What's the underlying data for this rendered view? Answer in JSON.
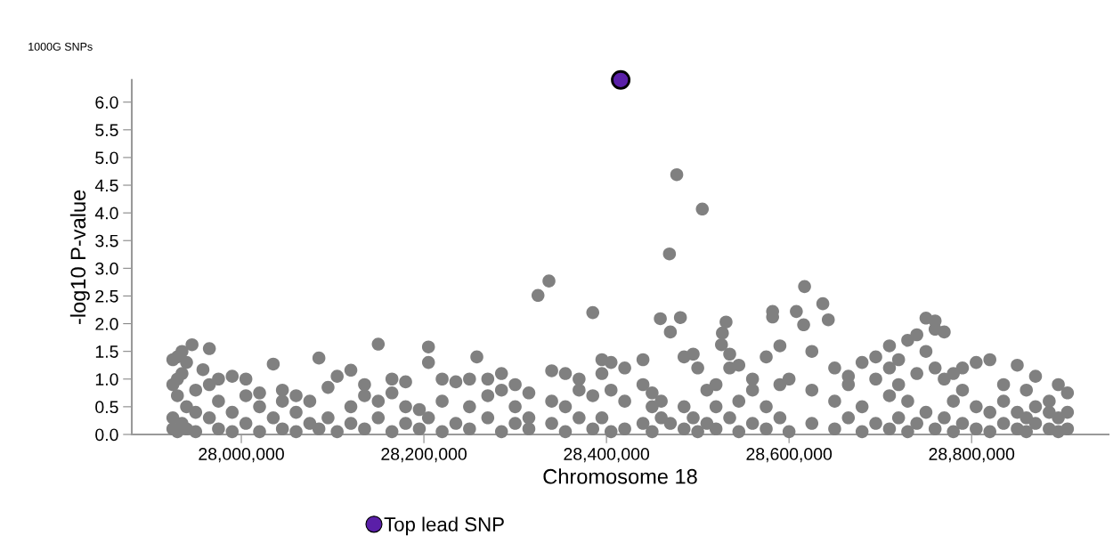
{
  "chart_data": {
    "type": "scatter",
    "title": "1000G SNPs",
    "xlabel": "Chromosome 18",
    "ylabel": "-log10 P-value",
    "xlim": [
      27880000,
      28950000
    ],
    "ylim": [
      0,
      6.4
    ],
    "xticks": [
      {
        "value": 28000000,
        "label": "28,000,000"
      },
      {
        "value": 28200000,
        "label": "28,200,000"
      },
      {
        "value": 28400000,
        "label": "28,400,000"
      },
      {
        "value": 28600000,
        "label": "28,600,000"
      },
      {
        "value": 28800000,
        "label": "28,800,000"
      }
    ],
    "yticks": [
      {
        "value": 0,
        "label": "0.0"
      },
      0.5,
      {
        "value": 1,
        "label": "1.0"
      },
      1.5,
      {
        "value": 2,
        "label": "2.0"
      },
      2.5,
      {
        "value": 3,
        "label": "3.0"
      },
      3.5,
      {
        "value": 4,
        "label": "4.0"
      },
      4.5,
      {
        "value": 5,
        "label": "5.0"
      },
      5.5,
      {
        "value": 6,
        "label": "6.0"
      }
    ],
    "grid": false,
    "legend": "bottom",
    "marker": "circle",
    "series": [
      {
        "color": "#808080",
        "x": [
          27925000,
          27925000,
          27925000,
          27925000,
          27930000,
          27930000,
          27930000,
          27930000,
          27935000,
          27935000,
          27935000,
          27940000,
          27940000,
          27940000,
          27946000,
          27950000,
          27950000,
          27950000,
          27958000,
          27965000,
          27965000,
          27965000,
          27975000,
          27975000,
          27975000,
          27990000,
          27990000,
          27990000,
          28005000,
          28005000,
          28005000,
          28020000,
          28020000,
          28020000,
          28035000,
          28035000,
          28045000,
          28045000,
          28045000,
          28060000,
          28060000,
          28060000,
          28075000,
          28075000,
          28085000,
          28085000,
          28095000,
          28095000,
          28105000,
          28105000,
          28120000,
          28120000,
          28120000,
          28135000,
          28135000,
          28135000,
          28150000,
          28150000,
          28150000,
          28165000,
          28165000,
          28165000,
          28180000,
          28180000,
          28180000,
          28195000,
          28195000,
          28205000,
          28205000,
          28205000,
          28220000,
          28220000,
          28220000,
          28235000,
          28235000,
          28250000,
          28250000,
          28250000,
          28258000,
          28270000,
          28270000,
          28270000,
          28285000,
          28285000,
          28285000,
          28300000,
          28300000,
          28300000,
          28315000,
          28315000,
          28315000,
          28325000,
          28337000,
          28340000,
          28340000,
          28340000,
          28355000,
          28355000,
          28355000,
          28370000,
          28370000,
          28370000,
          28385000,
          28385000,
          28385000,
          28395000,
          28395000,
          28395000,
          28405000,
          28405000,
          28405000,
          28420000,
          28420000,
          28420000,
          28440000,
          28440000,
          28440000,
          28450000,
          28450000,
          28450000,
          28459000,
          28460000,
          28460000,
          28469000,
          28470000,
          28470000,
          28477000,
          28481000,
          28485000,
          28485000,
          28485000,
          28495000,
          28495000,
          28500000,
          28500000,
          28505000,
          28510000,
          28510000,
          28520000,
          28520000,
          28520000,
          28526000,
          28527000,
          28531000,
          28535000,
          28535000,
          28535000,
          28545000,
          28545000,
          28545000,
          28560000,
          28560000,
          28560000,
          28575000,
          28575000,
          28575000,
          28582000,
          28582000,
          28590000,
          28590000,
          28590000,
          28600000,
          28600000,
          28608000,
          28616000,
          28617000,
          28625000,
          28625000,
          28625000,
          28637000,
          28643000,
          28650000,
          28650000,
          28650000,
          28665000,
          28665000,
          28665000,
          28680000,
          28680000,
          28680000,
          28695000,
          28695000,
          28695000,
          28710000,
          28710000,
          28710000,
          28710000,
          28720000,
          28720000,
          28720000,
          28730000,
          28730000,
          28730000,
          28740000,
          28740000,
          28740000,
          28750000,
          28750000,
          28750000,
          28760000,
          28760000,
          28760000,
          28760000,
          28770000,
          28770000,
          28770000,
          28780000,
          28780000,
          28780000,
          28790000,
          28790000,
          28790000,
          28805000,
          28805000,
          28805000,
          28820000,
          28820000,
          28820000,
          28835000,
          28835000,
          28835000,
          28850000,
          28850000,
          28850000,
          28860000,
          28860000,
          28860000,
          28870000,
          28870000,
          28870000,
          28885000,
          28885000,
          28885000,
          28895000,
          28895000,
          28895000,
          28905000,
          28905000,
          28905000
        ],
        "values": [
          0.1,
          0.3,
          0.9,
          1.35,
          0.05,
          0.7,
          1.0,
          1.4,
          0.2,
          1.1,
          1.5,
          0.1,
          0.5,
          1.3,
          1.62,
          0.05,
          0.4,
          0.8,
          1.17,
          1.55,
          0.3,
          0.9,
          0.1,
          0.6,
          1.0,
          0.05,
          0.4,
          1.05,
          0.2,
          0.7,
          1.0,
          0.05,
          0.5,
          0.75,
          1.27,
          0.3,
          0.1,
          0.6,
          0.8,
          0.05,
          0.4,
          0.7,
          0.2,
          0.6,
          1.38,
          0.1,
          0.3,
          0.85,
          1.05,
          0.05,
          1.16,
          0.5,
          0.2,
          0.1,
          0.7,
          0.9,
          1.63,
          0.3,
          0.6,
          0.05,
          0.75,
          1.0,
          0.2,
          0.5,
          0.95,
          0.1,
          0.45,
          1.58,
          1.3,
          0.3,
          0.05,
          0.6,
          1.0,
          0.2,
          0.95,
          0.1,
          0.5,
          1.0,
          1.4,
          0.3,
          0.7,
          1.0,
          0.05,
          0.8,
          1.1,
          0.2,
          0.5,
          0.9,
          0.1,
          0.3,
          0.75,
          2.51,
          2.77,
          0.2,
          0.6,
          1.15,
          0.05,
          0.5,
          1.1,
          0.3,
          0.8,
          1.0,
          2.2,
          0.1,
          0.7,
          1.1,
          1.35,
          0.3,
          0.05,
          0.8,
          1.3,
          0.1,
          0.6,
          1.2,
          1.35,
          0.9,
          0.2,
          0.05,
          0.5,
          0.75,
          2.09,
          0.3,
          0.6,
          3.26,
          1.85,
          0.2,
          4.69,
          2.11,
          1.4,
          0.5,
          0.1,
          1.45,
          0.3,
          1.2,
          0.05,
          4.07,
          0.8,
          0.2,
          0.5,
          0.1,
          0.9,
          1.62,
          1.83,
          2.03,
          1.45,
          1.2,
          0.3,
          0.05,
          0.6,
          1.25,
          0.2,
          0.8,
          1.0,
          0.1,
          0.5,
          1.4,
          2.22,
          2.12,
          0.3,
          0.9,
          1.6,
          0.05,
          1.0,
          2.22,
          1.98,
          2.67,
          0.2,
          0.8,
          1.5,
          2.36,
          2.07,
          0.1,
          0.6,
          1.2,
          0.3,
          0.9,
          1.05,
          0.05,
          0.5,
          1.3,
          0.2,
          1.0,
          1.4,
          0.1,
          0.7,
          1.2,
          1.6,
          0.3,
          0.9,
          1.35,
          0.05,
          0.6,
          1.7,
          0.2,
          1.1,
          1.8,
          0.4,
          1.5,
          2.1,
          0.1,
          1.2,
          1.9,
          2.05,
          0.3,
          1.0,
          1.85,
          0.05,
          0.6,
          1.1,
          0.2,
          0.8,
          1.2,
          0.1,
          0.5,
          1.3,
          0.05,
          0.4,
          1.35,
          0.2,
          0.6,
          0.9,
          0.1,
          0.4,
          1.25,
          0.05,
          0.3,
          0.8,
          0.2,
          0.5,
          1.05,
          0.1,
          0.4,
          0.6,
          0.05,
          0.3,
          0.9,
          0.1,
          0.4,
          0.75
        ]
      },
      {
        "name": "Top lead SNP",
        "color": "#5a1fa8",
        "x": [
          28415600
        ],
        "values": [
          6.4
        ]
      }
    ]
  }
}
